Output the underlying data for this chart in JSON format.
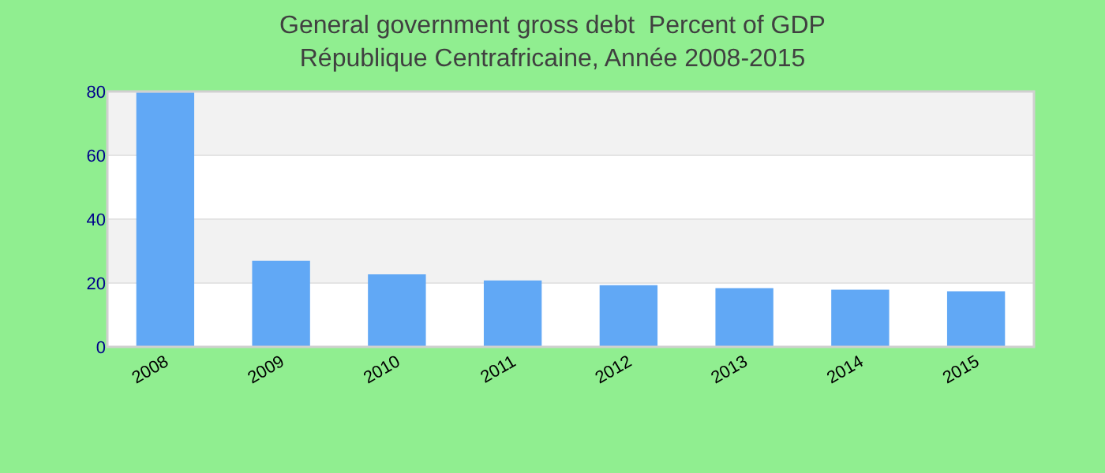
{
  "chart_data": {
    "type": "bar",
    "title": "General government gross debt  Percent of GDP",
    "subtitle": "République Centrafricaine, Année 2008-2015",
    "categories": [
      "2008",
      "2009",
      "2010",
      "2011",
      "2012",
      "2013",
      "2014",
      "2015"
    ],
    "values": [
      79.7,
      27.0,
      22.7,
      20.8,
      19.3,
      18.4,
      17.9,
      17.4
    ],
    "color": "#61a8f5",
    "ylim": [
      0,
      80
    ],
    "yticks": [
      0,
      20,
      40,
      60,
      80
    ],
    "grid": "y"
  }
}
